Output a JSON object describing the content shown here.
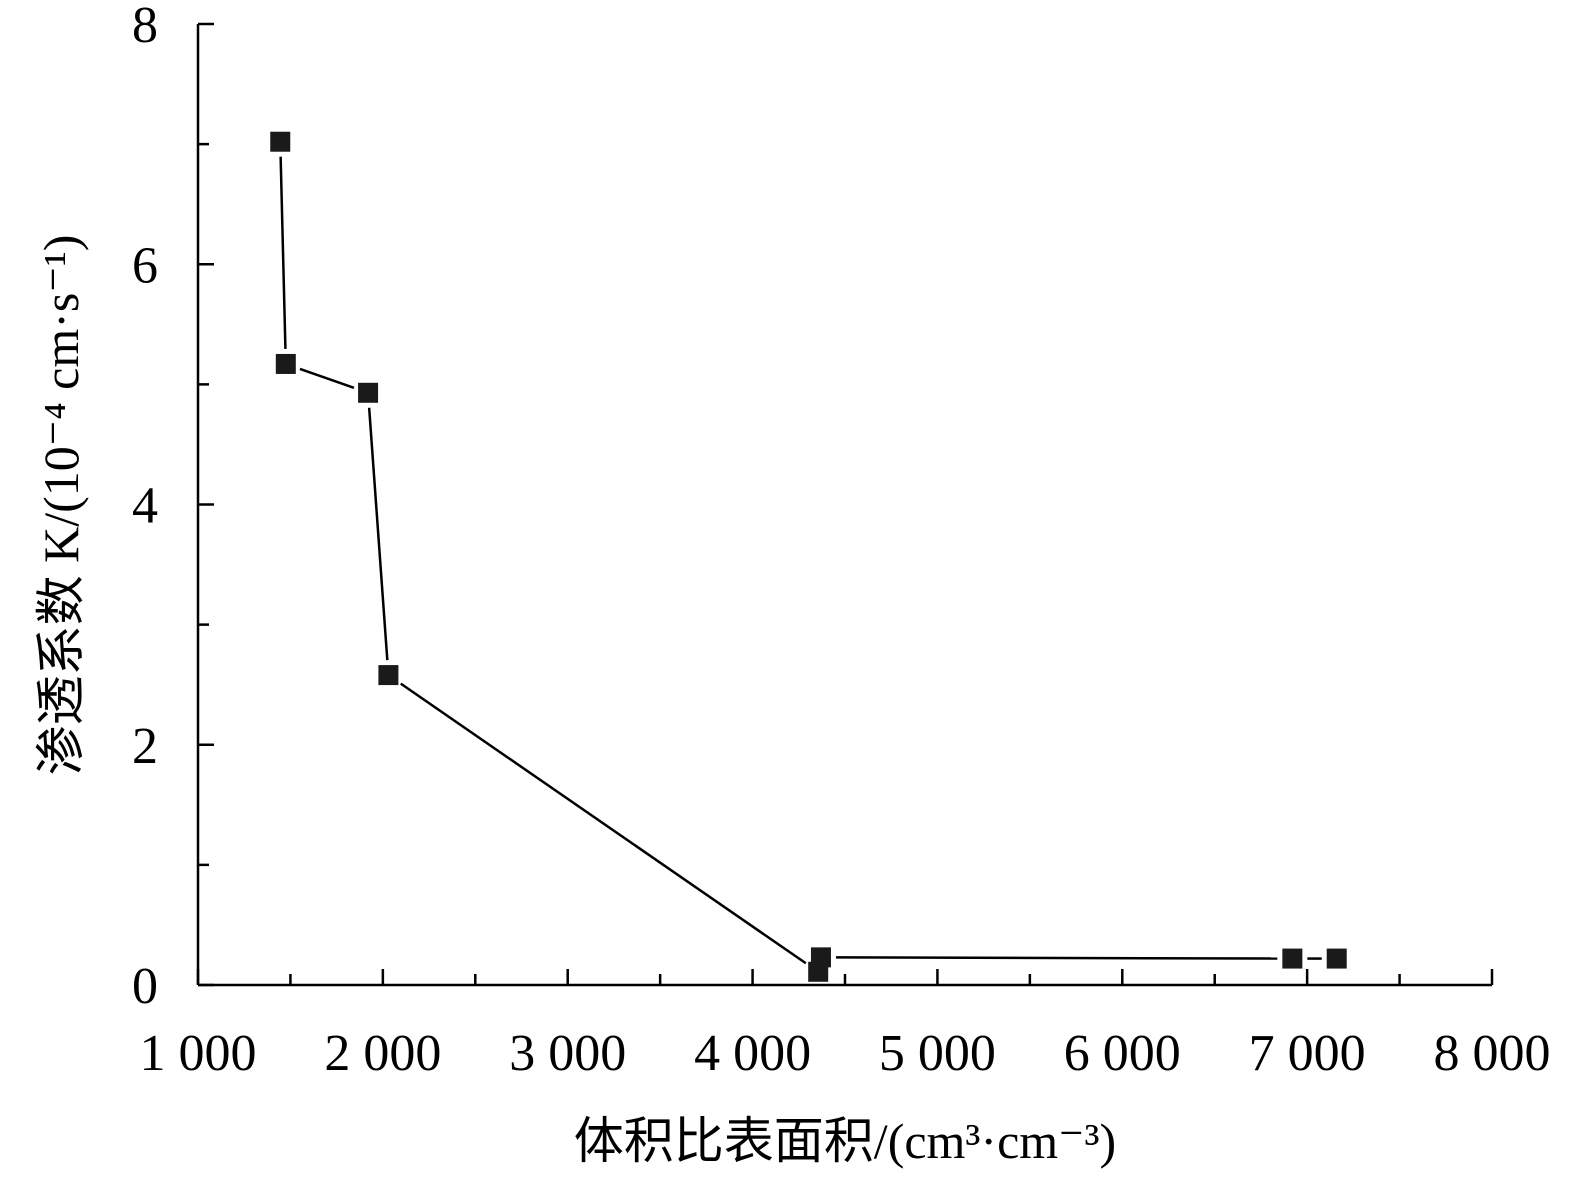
{
  "chart_data": {
    "type": "scatter",
    "xlabel": "体积比表面积/(cm³·cm⁻³)",
    "ylabel": "渗透系数 K/(10⁻⁴ cm·s⁻¹)",
    "xlim": [
      1000,
      8000
    ],
    "ylim": [
      0,
      8
    ],
    "x_ticks": [
      1000,
      2000,
      3000,
      4000,
      5000,
      6000,
      7000,
      8000
    ],
    "x_tick_labels": [
      "1 000",
      "2 000",
      "3 000",
      "4 000",
      "5 000",
      "6 000",
      "7 000",
      "8 000"
    ],
    "x_minor_step": 500,
    "y_ticks": [
      0,
      2,
      4,
      6,
      8
    ],
    "y_tick_labels": [
      "0",
      "2",
      "4",
      "6",
      "8"
    ],
    "y_minor_step": 1,
    "grid": false,
    "legend": "none",
    "series": [
      {
        "marker": "square",
        "line": "solid",
        "color": "#1a1a1a",
        "x": [
          1445,
          1475,
          1920,
          2030,
          4355,
          4370,
          6920,
          7160
        ],
        "y": [
          7.02,
          5.17,
          4.93,
          2.58,
          0.11,
          0.23,
          0.22,
          0.22
        ]
      }
    ]
  }
}
